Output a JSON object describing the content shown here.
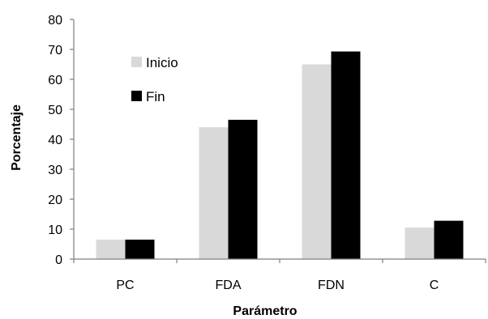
{
  "chart_data": {
    "type": "bar",
    "categories": [
      "PC",
      "FDA",
      "FDN",
      "C"
    ],
    "series": [
      {
        "name": "Inicio",
        "values": [
          6.5,
          44,
          65,
          10.5
        ],
        "color": "#d9d9d9"
      },
      {
        "name": "Fin",
        "values": [
          6.5,
          46.5,
          69.3,
          12.8
        ],
        "color": "#000000"
      }
    ],
    "xlabel": "Parámetro",
    "ylabel": "Porcentaje",
    "ylim": [
      0,
      80
    ],
    "yticks": [
      0,
      10,
      20,
      30,
      40,
      50,
      60,
      70,
      80
    ],
    "grid": false,
    "legend_position": "top-left"
  }
}
